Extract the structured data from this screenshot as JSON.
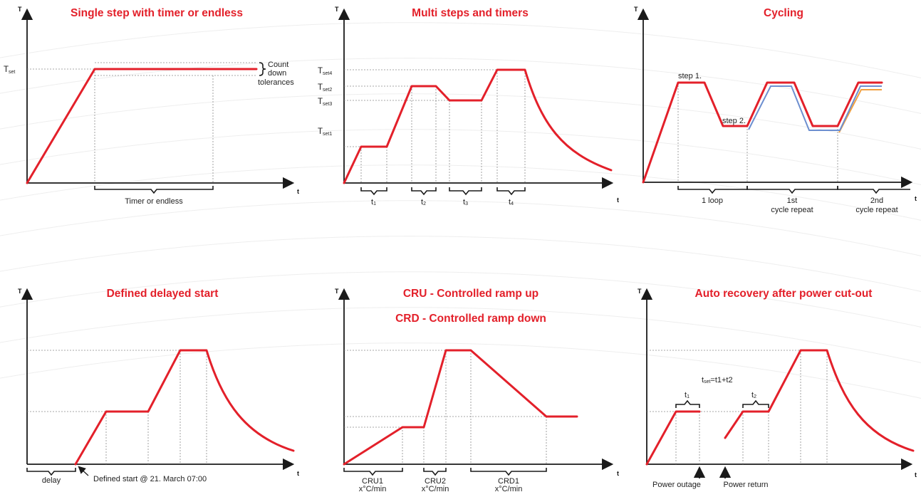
{
  "panels": [
    {
      "title": "Single step with timer or endless",
      "axis_y": "T",
      "axis_x": "t",
      "labels": {
        "tset": "T",
        "tset_sub": "set",
        "count1": "Count",
        "count2": "down",
        "count3": "tolerances",
        "timer": "Timer or endless"
      }
    },
    {
      "title": "Multi steps and timers",
      "axis_y": "T",
      "axis_x": "t",
      "labels": {
        "tset4": "T",
        "tset4_sub": "set4",
        "tset2": "T",
        "tset2_sub": "set2",
        "tset3": "T",
        "tset3_sub": "set3",
        "tset1": "T",
        "tset1_sub": "set1",
        "t1": "t",
        "t1_sub": "1",
        "t2": "t",
        "t2_sub": "2",
        "t3": "t",
        "t3_sub": "3",
        "t4": "t",
        "t4_sub": "4"
      }
    },
    {
      "title": "Cycling",
      "axis_y": "T",
      "axis_x": "t",
      "labels": {
        "step1": "step 1.",
        "step2": "step 2.",
        "loop": "1 loop",
        "c1a": "1st",
        "c1b": "cycle repeat",
        "c2a": "2nd",
        "c2b": "cycle repeat"
      }
    },
    {
      "title": "Defined delayed start",
      "axis_y": "T",
      "axis_x": "t",
      "labels": {
        "delay": "delay",
        "start": "Defined start @ 21. March 07:00"
      }
    },
    {
      "title": "CRU - Controlled ramp up",
      "title2": "CRD - Controlled ramp down",
      "axis_y": "T",
      "axis_x": "t",
      "labels": {
        "cru1": "CRU1",
        "cru2": "CRU2",
        "crd1": "CRD1",
        "rate1": "x°C/min",
        "rate2": "x°C/min",
        "rate3": "x°C/min"
      }
    },
    {
      "title": "Auto recovery after power cut-out",
      "axis_y": "T",
      "axis_x": "t",
      "labels": {
        "formula_t": "t",
        "formula_sub": "set",
        "formula_rest": "=t1+t2",
        "t1": "t",
        "t1_sub": "1",
        "t2": "t",
        "t2_sub": "2",
        "outage": "Power outage",
        "return": "Power return"
      }
    }
  ],
  "colors": {
    "curve": "#e3202a",
    "title": "#e3202a",
    "cycle_blue": "#6d8fd0",
    "cycle_orange": "#f0a040",
    "axis": "#1a1a1a"
  }
}
